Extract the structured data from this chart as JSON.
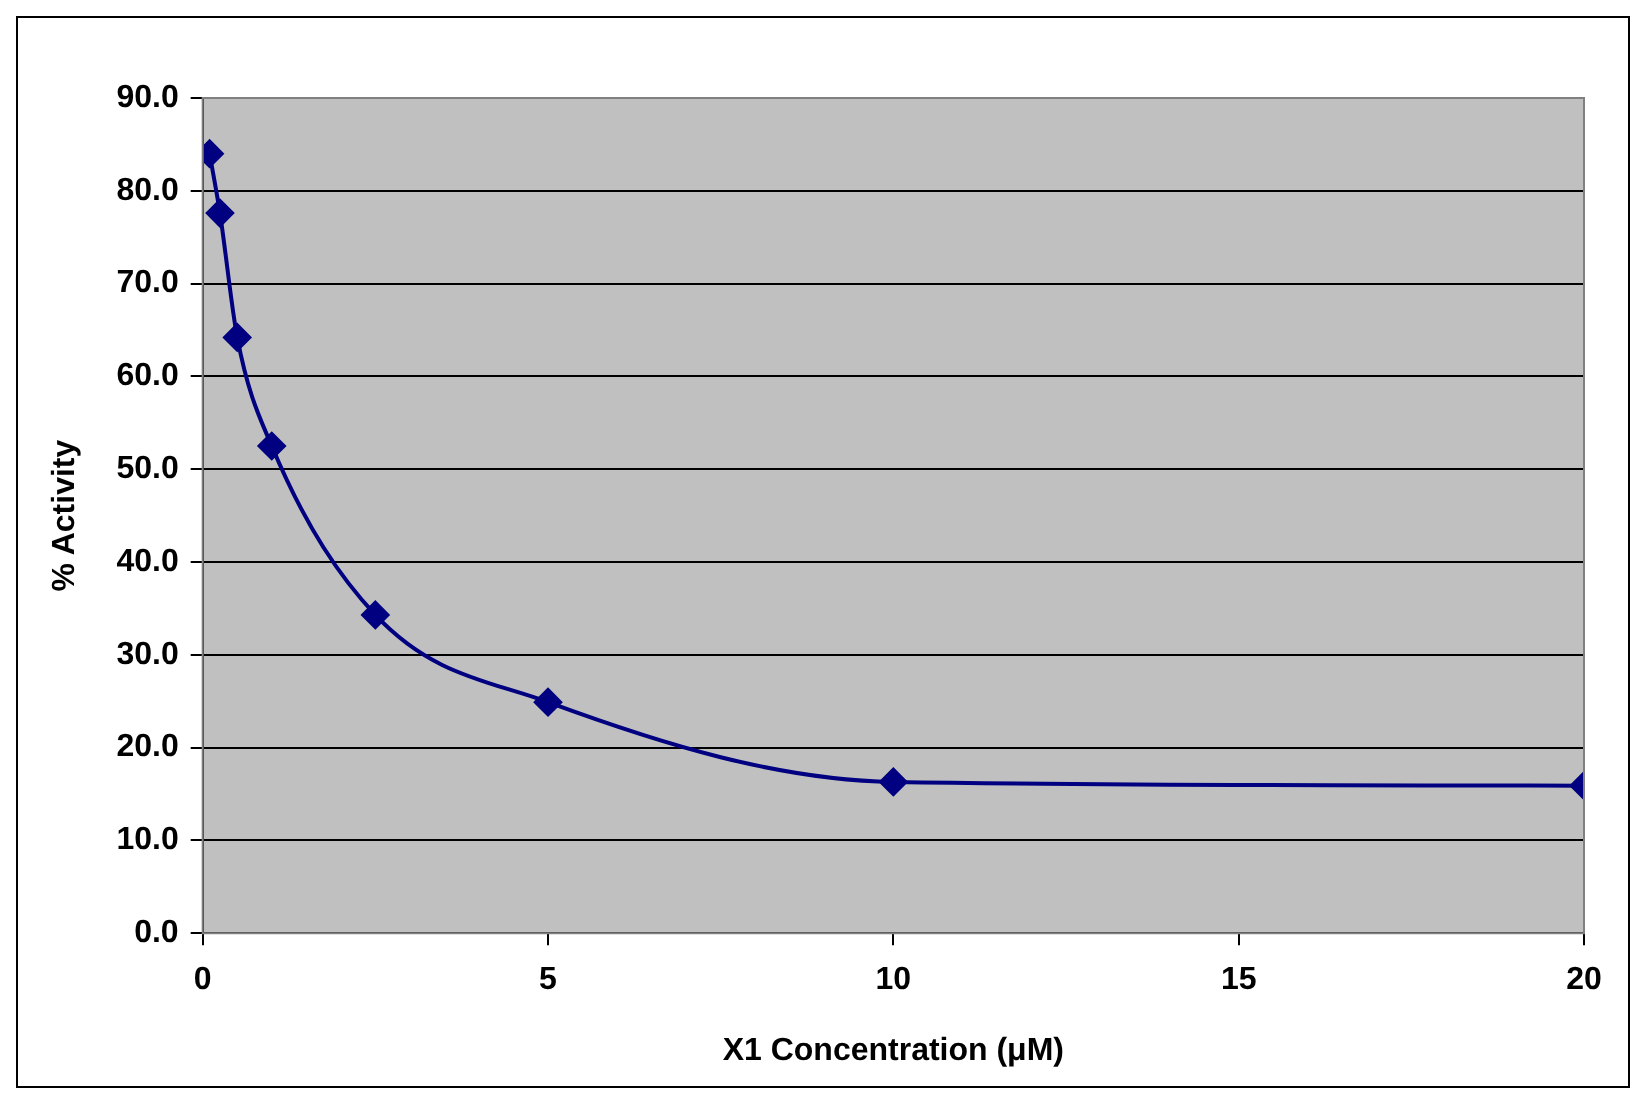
{
  "chart_data": {
    "type": "line",
    "xlabel": "X1 Concentration (μM)",
    "ylabel": "% Activity",
    "series": [
      {
        "color": "#000080",
        "x": [
          0.1,
          0.25,
          0.5,
          1,
          2.5,
          5,
          10,
          20
        ],
        "values": [
          84.0,
          77.6,
          64.2,
          52.5,
          34.3,
          24.9,
          16.3,
          15.9
        ]
      }
    ],
    "xlim": [
      0,
      20
    ],
    "xticks": [
      0,
      5,
      10,
      15,
      20
    ],
    "ylim": [
      0,
      90
    ],
    "yticks": [
      {
        "value": 0,
        "label": "0.0"
      },
      {
        "value": 10,
        "label": "10.0"
      },
      {
        "value": 20,
        "label": "20.0"
      },
      {
        "value": 30,
        "label": "30.0"
      },
      {
        "value": 40,
        "label": "40.0"
      },
      {
        "value": 50,
        "label": "50.0"
      },
      {
        "value": 60,
        "label": "60.0"
      },
      {
        "value": 70,
        "label": "70.0"
      },
      {
        "value": 80,
        "label": "80.0"
      },
      {
        "value": 90,
        "label": "90.0"
      }
    ],
    "grid": "y",
    "legend": false,
    "marker": "diamond",
    "line_style": "solid"
  }
}
